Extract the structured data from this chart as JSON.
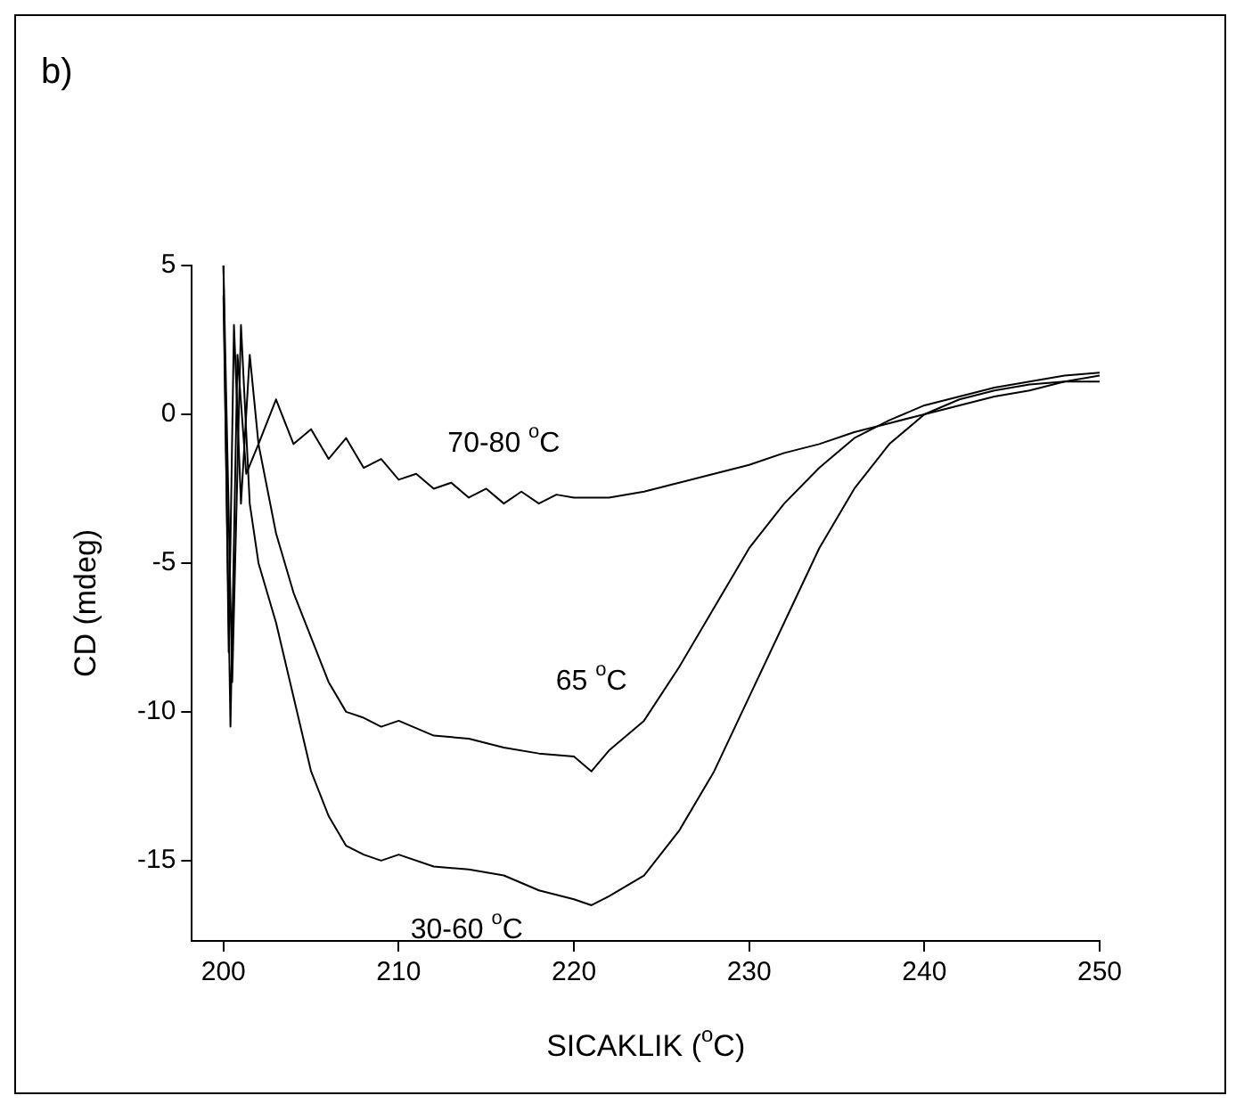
{
  "chart_data": {
    "type": "line",
    "title": "b)",
    "xlabel": "SICAKLIK ($^{o}$C)",
    "ylabel": "CD (mdeg)",
    "xlim": [
      198.2,
      250
    ],
    "xticks": [
      200,
      210,
      220,
      230,
      240,
      250
    ],
    "ylim": [
      -17.7,
      5
    ],
    "yticks": [
      -15,
      -10,
      -5,
      0,
      5
    ],
    "grid": false,
    "legend": false,
    "marker": "none",
    "line_style": "solid",
    "series": [
      {
        "name": "70-80 $^{o}$C",
        "color": "#000000",
        "x": [
          200,
          200.3,
          200.6,
          201,
          201.5,
          202,
          203,
          204,
          205,
          206,
          207,
          208,
          209,
          210,
          211,
          212,
          213,
          214,
          215,
          216,
          217,
          218,
          219,
          220,
          222,
          224,
          226,
          228,
          230,
          232,
          234,
          236,
          238,
          240,
          242,
          244,
          246,
          248,
          250
        ],
        "values": [
          5,
          -8,
          3,
          -3,
          2,
          -1,
          0.5,
          -1,
          -0.5,
          -1.5,
          -0.8,
          -1.8,
          -1.5,
          -2.2,
          -2,
          -2.5,
          -2.3,
          -2.8,
          -2.5,
          -3,
          -2.6,
          -3,
          -2.7,
          -2.8,
          -2.8,
          -2.6,
          -2.3,
          -2,
          -1.7,
          -1.3,
          -1,
          -0.6,
          -0.3,
          0,
          0.3,
          0.6,
          0.8,
          1.1,
          1.3
        ]
      },
      {
        "name": "65 $^{o}$C",
        "color": "#000000",
        "x": [
          200,
          200.4,
          200.8,
          201.3,
          202,
          203,
          204,
          205,
          206,
          207,
          208,
          209,
          210,
          212,
          214,
          216,
          218,
          220,
          221,
          222,
          224,
          226,
          228,
          230,
          232,
          234,
          236,
          238,
          240,
          242,
          244,
          246,
          248,
          250
        ],
        "values": [
          4,
          -10.5,
          2,
          -2,
          -1,
          -4,
          -6,
          -7.5,
          -9,
          -10,
          -10.2,
          -10.5,
          -10.3,
          -10.8,
          -10.9,
          -11.2,
          -11.4,
          -11.5,
          -12,
          -11.3,
          -10.3,
          -8.5,
          -6.5,
          -4.5,
          -3,
          -1.8,
          -0.8,
          -0.2,
          0.3,
          0.6,
          0.9,
          1.1,
          1.3,
          1.4
        ]
      },
      {
        "name": "30-60 $^{o}$C",
        "color": "#000000",
        "x": [
          200,
          200.5,
          201,
          201.5,
          202,
          203,
          204,
          205,
          206,
          207,
          208,
          209,
          210,
          212,
          214,
          216,
          218,
          220,
          221,
          222,
          224,
          226,
          228,
          230,
          232,
          234,
          236,
          238,
          240,
          242,
          244,
          246,
          248,
          250
        ],
        "values": [
          5,
          -9,
          3,
          -3,
          -5,
          -7,
          -9.5,
          -12,
          -13.5,
          -14.5,
          -14.8,
          -15,
          -14.8,
          -15.2,
          -15.3,
          -15.5,
          -16,
          -16.3,
          -16.5,
          -16.2,
          -15.5,
          -14,
          -12,
          -9.5,
          -7,
          -4.5,
          -2.5,
          -1,
          0,
          0.5,
          0.8,
          1,
          1.1,
          1.1
        ]
      }
    ]
  }
}
